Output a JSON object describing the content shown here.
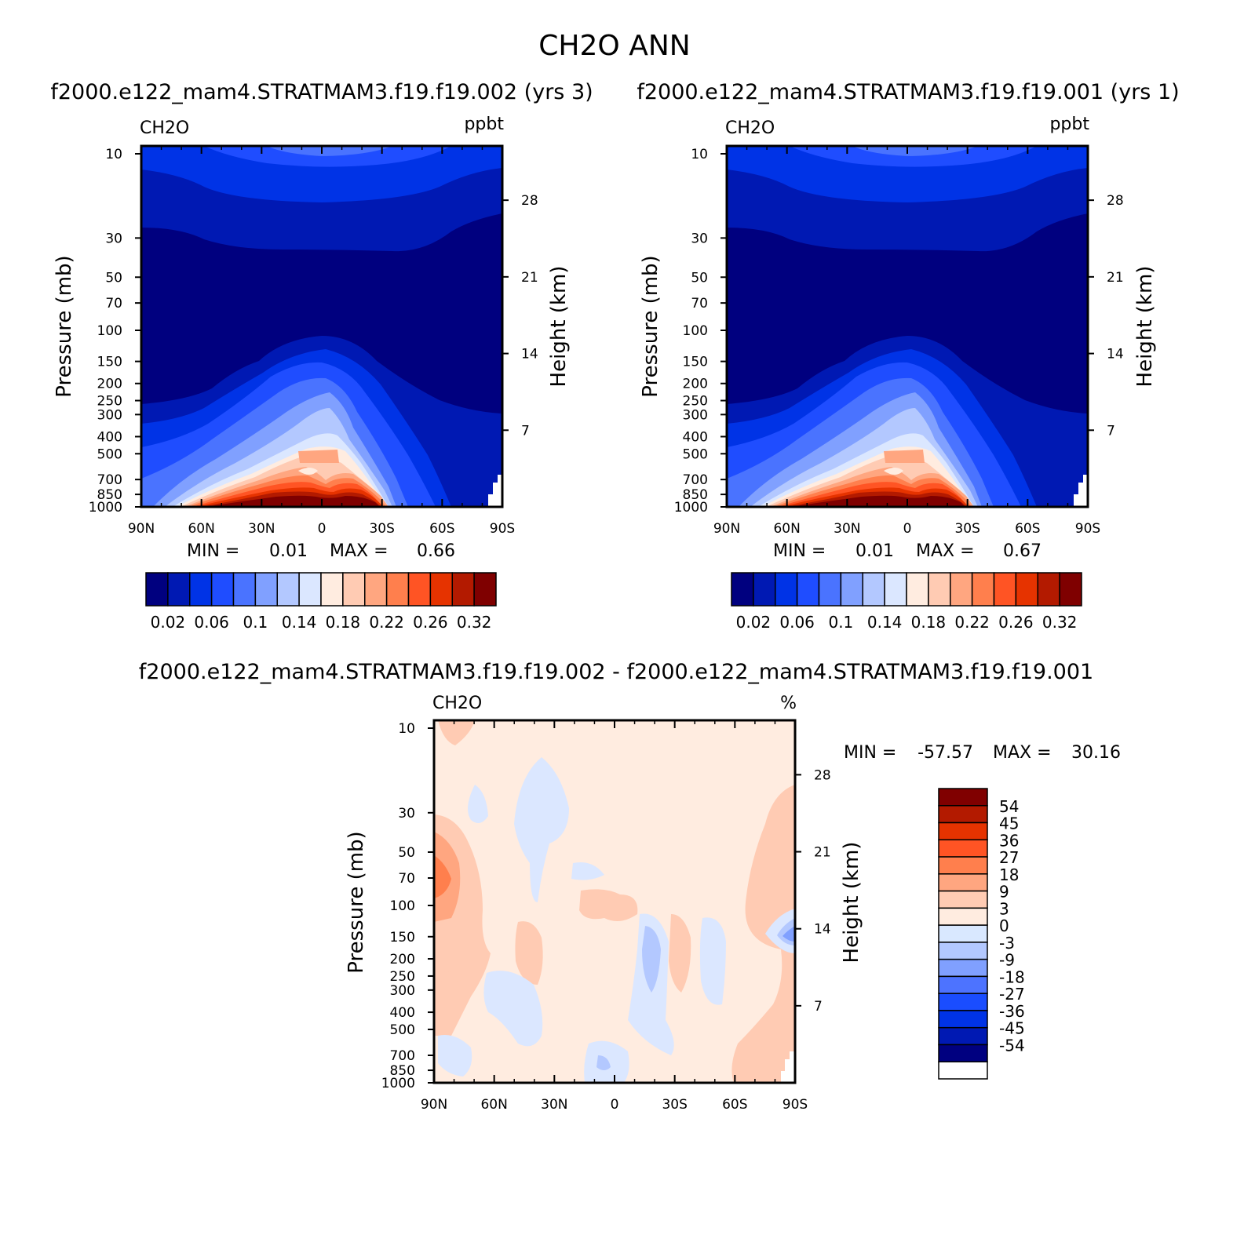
{
  "figure": {
    "title": "CH2O ANN",
    "case1_heading": "f2000.e122_mam4.STRATMAM3.f19.f19.002 (yrs 3)",
    "case2_heading": "f2000.e122_mam4.STRATMAM3.f19.f19.001 (yrs 1)",
    "diff_heading": "f2000.e122_mam4.STRATMAM3.f19.f19.002 - f2000.e122_mam4.STRATMAM3.f19.f19.001"
  },
  "colors": {
    "abs_scale": [
      "#00007f",
      "#0019b3",
      "#0033e6",
      "#1f4dff",
      "#4a73ff",
      "#80a0ff",
      "#b3c8ff",
      "#dbe7ff",
      "#ffece0",
      "#ffcbb3",
      "#ffa680",
      "#ff7f4d",
      "#ff5424",
      "#e63300",
      "#b31a00",
      "#7f0000"
    ],
    "diff_scale": [
      "#ffffff",
      "#000080",
      "#0019b3",
      "#0033e6",
      "#1a4dff",
      "#4d73ff",
      "#80a0ff",
      "#b3c8ff",
      "#d9e8ff",
      "#ffece0",
      "#ffcbb3",
      "#ffa680",
      "#ff7f4d",
      "#ff5424",
      "#e63300",
      "#b31a00",
      "#800000"
    ]
  },
  "chart_data": [
    {
      "type": "contour",
      "id": "case1",
      "variable": "CH2O",
      "units": "ppbt",
      "xlabel": "",
      "ylabel": "Pressure (mb)",
      "ylabel_right": "Height (km)",
      "x_ticks": [
        "90N",
        "60N",
        "30N",
        "0",
        "30S",
        "60S",
        "90S"
      ],
      "x_values": [
        90,
        60,
        30,
        0,
        -30,
        -60,
        -90
      ],
      "y_ticks": [
        10,
        30,
        50,
        70,
        100,
        150,
        200,
        250,
        300,
        400,
        500,
        700,
        850,
        1000
      ],
      "y_right_ticks": [
        28,
        21,
        14,
        7
      ],
      "ylim": [
        1000,
        10
      ],
      "min_label": "MIN =",
      "min_value": "0.01",
      "max_label": "MAX =",
      "max_value": "0.66",
      "colorbar_labels": [
        "0.02",
        "0.06",
        "0.1",
        "0.14",
        "0.18",
        "0.22",
        "0.26",
        "0.32"
      ]
    },
    {
      "type": "contour",
      "id": "case2",
      "variable": "CH2O",
      "units": "ppbt",
      "ylabel": "Pressure (mb)",
      "ylabel_right": "Height (km)",
      "x_ticks": [
        "90N",
        "60N",
        "30N",
        "0",
        "30S",
        "60S",
        "90S"
      ],
      "x_values": [
        90,
        60,
        30,
        0,
        -30,
        -60,
        -90
      ],
      "y_ticks": [
        10,
        30,
        50,
        70,
        100,
        150,
        200,
        250,
        300,
        400,
        500,
        700,
        850,
        1000
      ],
      "y_right_ticks": [
        28,
        21,
        14,
        7
      ],
      "ylim": [
        1000,
        10
      ],
      "min_label": "MIN =",
      "min_value": "0.01",
      "max_label": "MAX =",
      "max_value": "0.67",
      "colorbar_labels": [
        "0.02",
        "0.06",
        "0.1",
        "0.14",
        "0.18",
        "0.22",
        "0.26",
        "0.32"
      ]
    },
    {
      "type": "contour",
      "id": "diff",
      "variable": "CH2O",
      "units": "%",
      "ylabel": "Pressure (mb)",
      "ylabel_right": "Height (km)",
      "x_ticks": [
        "90N",
        "60N",
        "30N",
        "0",
        "30S",
        "60S",
        "90S"
      ],
      "x_values": [
        90,
        60,
        30,
        0,
        -30,
        -60,
        -90
      ],
      "y_ticks": [
        10,
        30,
        50,
        70,
        100,
        150,
        200,
        250,
        300,
        400,
        500,
        700,
        850,
        1000
      ],
      "y_right_ticks": [
        28,
        21,
        14,
        7
      ],
      "ylim": [
        1000,
        10
      ],
      "min_label": "MIN =",
      "min_value": "-57.57",
      "max_label": "MAX =",
      "max_value": "30.16",
      "colorbar_labels": [
        "54",
        "45",
        "36",
        "27",
        "18",
        "9",
        "3",
        "0",
        "-3",
        "-9",
        "-18",
        "-27",
        "-36",
        "-45",
        "-54"
      ]
    }
  ]
}
